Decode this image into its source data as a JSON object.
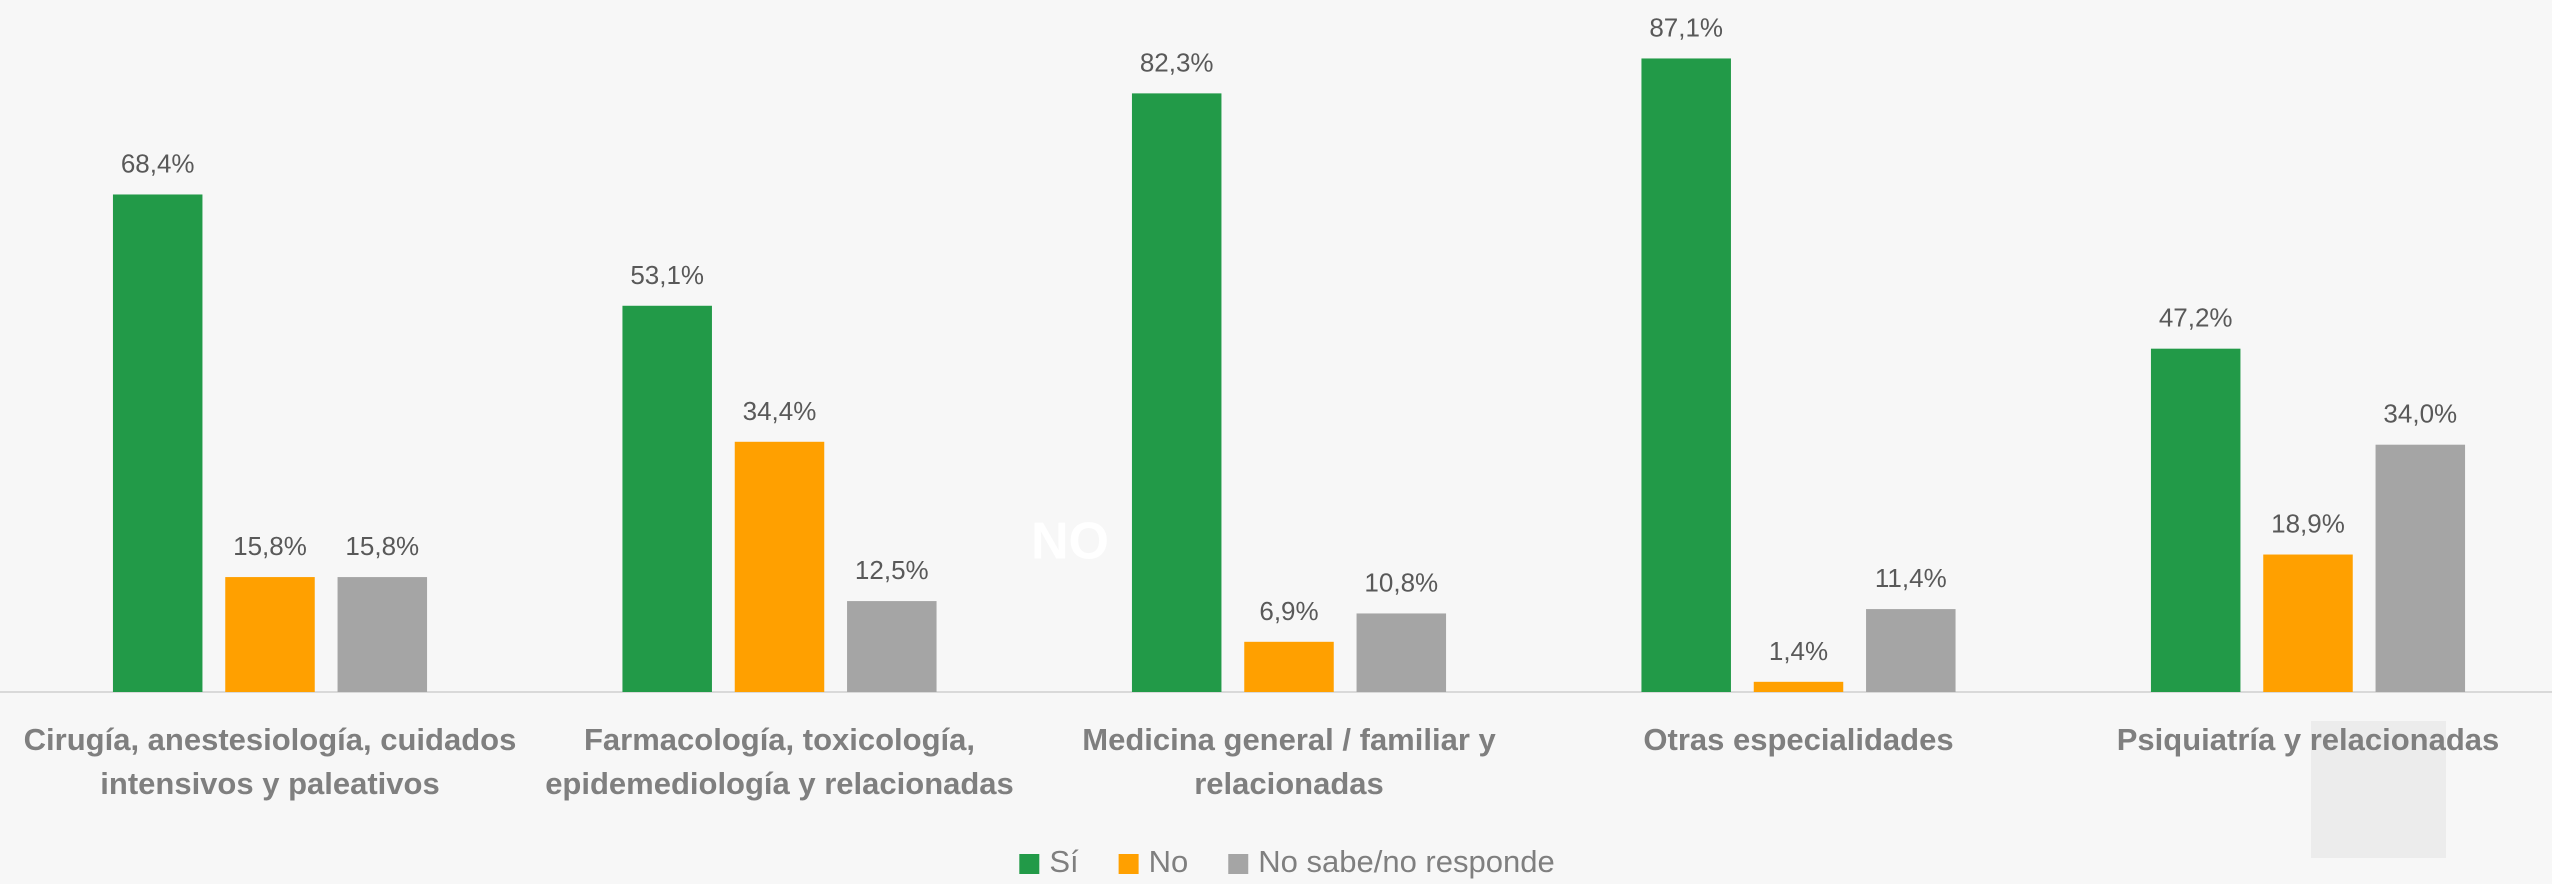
{
  "chart_data": {
    "type": "bar",
    "categories": [
      "Cirugía, anestesiología, cuidados intensivos y paleativos",
      "Farmacología, toxicología, epidemediología y relacionadas",
      "Medicina general / familiar y relacionadas",
      "Otras especialidades",
      "Psiquiatría y relacionadas"
    ],
    "series": [
      {
        "name": "Sí",
        "color": "#229a48",
        "values": [
          68.4,
          53.1,
          82.3,
          87.1,
          47.2
        ],
        "value_labels": [
          "68,4%",
          "53,1%",
          "82,3%",
          "87,1%",
          "47,2%"
        ]
      },
      {
        "name": "No",
        "color": "#ffa000",
        "values": [
          15.8,
          34.4,
          6.9,
          1.4,
          18.9
        ],
        "value_labels": [
          "15,8%",
          "34,4%",
          "6,9%",
          "1,4%",
          "18,9%"
        ]
      },
      {
        "name": "No sabe/no responde",
        "color": "#a5a5a5",
        "values": [
          15.8,
          12.5,
          10.8,
          11.4,
          34.0
        ],
        "value_labels": [
          "15,8%",
          "12,5%",
          "10,8%",
          "11,4%",
          "34,0%"
        ]
      }
    ],
    "ylim": [
      0,
      95
    ],
    "legend": "bottom",
    "annotation": "NO"
  }
}
